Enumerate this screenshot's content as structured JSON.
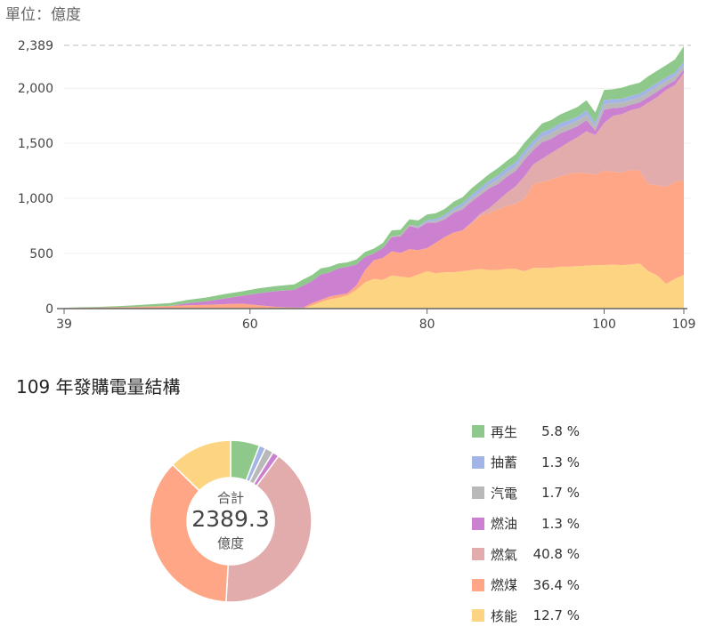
{
  "unit_label": "單位：億度",
  "pie_title": "109 年發購電量結構",
  "donut": {
    "center_label": "合計",
    "center_value": "2389.3",
    "center_unit": "億度"
  },
  "chart_data": [
    {
      "type": "area",
      "stacked": true,
      "x": [
        39,
        41,
        43,
        45,
        47,
        49,
        51,
        53,
        55,
        57,
        59,
        61,
        63,
        65,
        66,
        67,
        68,
        69,
        70,
        71,
        72,
        73,
        74,
        75,
        76,
        77,
        78,
        79,
        80,
        81,
        82,
        83,
        84,
        85,
        86,
        87,
        88,
        89,
        90,
        91,
        92,
        93,
        94,
        95,
        96,
        97,
        98,
        99,
        100,
        101,
        102,
        103,
        104,
        105,
        106,
        107,
        108,
        109
      ],
      "xticks": [
        "39",
        "60",
        "80",
        "100",
        "109"
      ],
      "yticks": [
        "0",
        "500",
        "1,000",
        "1,500",
        "2,000",
        "2,389"
      ],
      "ylim": [
        0,
        2389
      ],
      "ymax_label": "2,389",
      "grid": true,
      "series": [
        {
          "key": "nuclear",
          "color": "#fdd481",
          "values": [
            0,
            0,
            0,
            0,
            0,
            0,
            0,
            0,
            0,
            0,
            0,
            0,
            0,
            0,
            0,
            30,
            60,
            85,
            100,
            120,
            170,
            240,
            270,
            260,
            300,
            290,
            280,
            310,
            340,
            320,
            330,
            330,
            340,
            350,
            360,
            350,
            350,
            360,
            360,
            340,
            370,
            370,
            370,
            380,
            380,
            385,
            390,
            395,
            395,
            400,
            395,
            400,
            410,
            340,
            300,
            225,
            270,
            305
          ]
        },
        {
          "key": "coal",
          "color": "#fea685",
          "values": [
            5,
            8,
            10,
            12,
            15,
            20,
            25,
            30,
            35,
            40,
            45,
            30,
            15,
            10,
            10,
            20,
            20,
            25,
            25,
            20,
            40,
            110,
            170,
            200,
            220,
            215,
            260,
            220,
            210,
            280,
            320,
            360,
            370,
            420,
            480,
            520,
            550,
            570,
            590,
            660,
            760,
            780,
            800,
            820,
            840,
            850,
            840,
            820,
            860,
            840,
            840,
            860,
            840,
            790,
            820,
            880,
            880,
            860
          ]
        },
        {
          "key": "gas",
          "color": "#e2acac",
          "values": [
            0,
            0,
            0,
            0,
            0,
            0,
            0,
            0,
            0,
            0,
            0,
            0,
            0,
            0,
            0,
            0,
            0,
            0,
            0,
            0,
            0,
            0,
            0,
            0,
            0,
            0,
            0,
            0,
            0,
            0,
            0,
            0,
            0,
            10,
            20,
            40,
            80,
            120,
            160,
            200,
            180,
            210,
            240,
            260,
            290,
            320,
            380,
            360,
            430,
            510,
            530,
            540,
            570,
            740,
            800,
            880,
            880,
            975
          ]
        },
        {
          "key": "oil",
          "color": "#cb81cf",
          "values": [
            0,
            0,
            0,
            0,
            0,
            0,
            0,
            20,
            30,
            50,
            70,
            110,
            145,
            160,
            200,
            200,
            230,
            220,
            240,
            240,
            190,
            120,
            60,
            90,
            130,
            150,
            210,
            200,
            230,
            180,
            160,
            180,
            190,
            190,
            170,
            180,
            150,
            145,
            140,
            150,
            130,
            150,
            130,
            130,
            110,
            100,
            100,
            40,
            120,
            70,
            60,
            50,
            50,
            50,
            50,
            40,
            40,
            31
          ]
        },
        {
          "key": "steam",
          "color": "#b9b9b9",
          "values": [
            0,
            0,
            0,
            0,
            0,
            0,
            0,
            0,
            0,
            0,
            0,
            0,
            0,
            0,
            0,
            0,
            0,
            0,
            0,
            0,
            0,
            0,
            0,
            0,
            10,
            10,
            10,
            10,
            10,
            15,
            20,
            20,
            25,
            30,
            30,
            35,
            40,
            40,
            40,
            45,
            45,
            50,
            50,
            50,
            50,
            50,
            50,
            40,
            50,
            45,
            45,
            45,
            45,
            45,
            45,
            40,
            40,
            41
          ]
        },
        {
          "key": "pumped",
          "color": "#a3b5e7",
          "values": [
            0,
            0,
            0,
            0,
            0,
            0,
            0,
            0,
            0,
            0,
            0,
            0,
            0,
            0,
            0,
            0,
            0,
            0,
            0,
            0,
            0,
            0,
            0,
            0,
            0,
            0,
            0,
            10,
            15,
            20,
            20,
            25,
            30,
            30,
            35,
            35,
            40,
            40,
            40,
            40,
            40,
            40,
            40,
            40,
            40,
            40,
            40,
            35,
            40,
            35,
            35,
            35,
            35,
            35,
            35,
            35,
            32,
            31
          ]
        },
        {
          "key": "renewable",
          "color": "#8ec98b",
          "values": [
            2,
            4,
            6,
            10,
            15,
            20,
            25,
            30,
            35,
            40,
            40,
            45,
            45,
            50,
            55,
            55,
            55,
            50,
            45,
            40,
            45,
            45,
            45,
            45,
            50,
            50,
            50,
            50,
            50,
            50,
            55,
            55,
            55,
            60,
            60,
            60,
            65,
            65,
            70,
            70,
            70,
            80,
            80,
            80,
            85,
            85,
            90,
            90,
            90,
            90,
            100,
            100,
            100,
            110,
            110,
            110,
            120,
            139
          ]
        }
      ]
    },
    {
      "type": "pie",
      "donut": true,
      "title": "109 年發購電量結構",
      "total": 2389.3,
      "slices": [
        {
          "label": "再生",
          "value": 5.8,
          "pct": "5.8 %",
          "color": "#8ec98b"
        },
        {
          "label": "抽蓄",
          "value": 1.3,
          "pct": "1.3 %",
          "color": "#a3b5e7"
        },
        {
          "label": "汽電",
          "value": 1.7,
          "pct": "1.7 %",
          "color": "#b9b9b9"
        },
        {
          "label": "燃油",
          "value": 1.3,
          "pct": "1.3 %",
          "color": "#cb81cf"
        },
        {
          "label": "燃氣",
          "value": 40.8,
          "pct": "40.8 %",
          "color": "#e2acac"
        },
        {
          "label": "燃煤",
          "value": 36.4,
          "pct": "36.4 %",
          "color": "#fea685"
        },
        {
          "label": "核能",
          "value": 12.7,
          "pct": "12.7 %",
          "color": "#fdd481"
        }
      ]
    }
  ]
}
